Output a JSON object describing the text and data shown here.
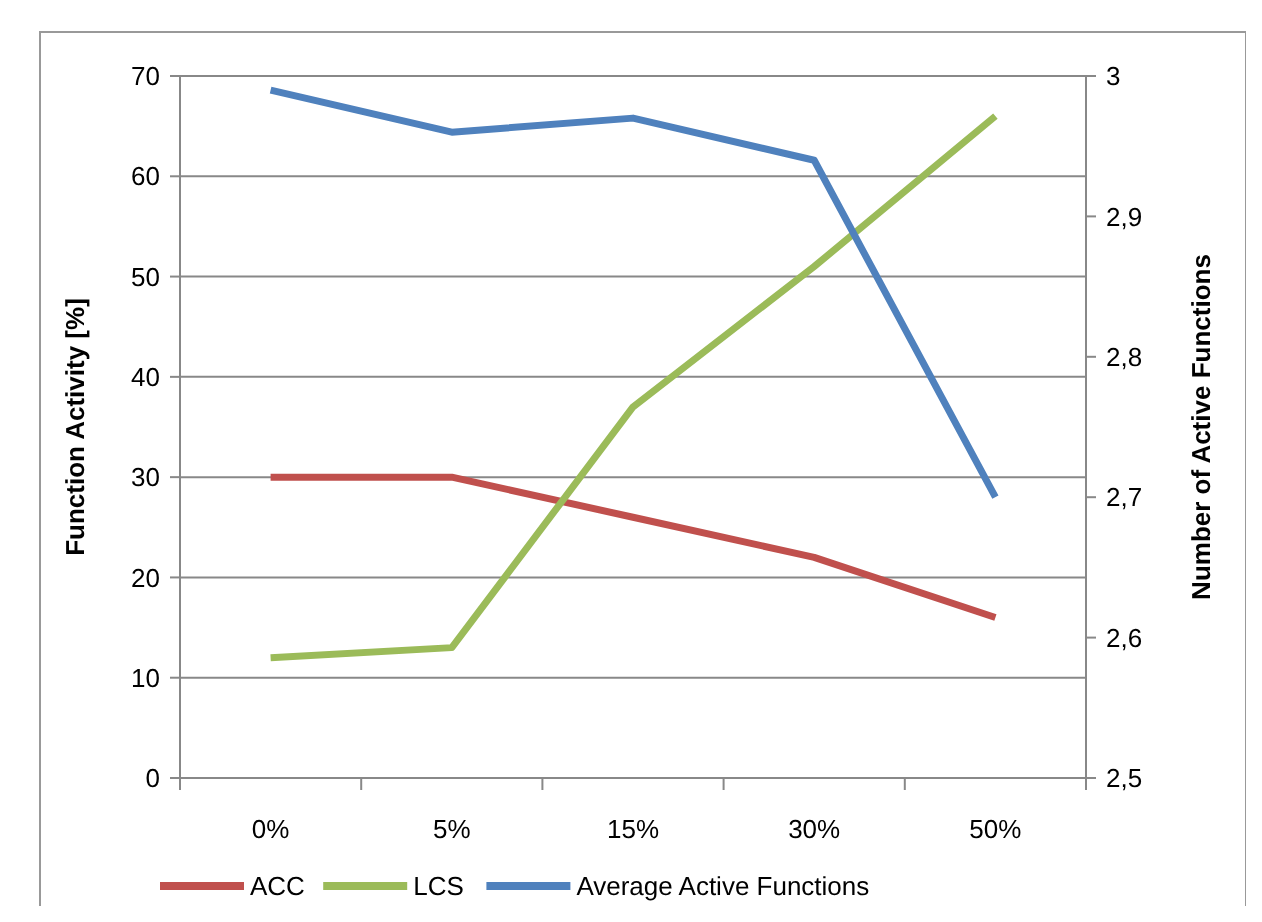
{
  "chart_data": {
    "type": "line",
    "categories": [
      "0%",
      "5%",
      "15%",
      "30%",
      "50%"
    ],
    "ylabel": "Function Activity [%]",
    "y2label": "Number of Active Functions",
    "series": [
      {
        "name": "ACC",
        "color": "#c0504d",
        "values": [
          30,
          30,
          26,
          22,
          16
        ]
      },
      {
        "name": "LCS",
        "color": "#9bbb59",
        "values": [
          12,
          13,
          37,
          51,
          66
        ]
      },
      {
        "name": "Average Active Functions",
        "color": "#4f81bd",
        "values": [
          2.99,
          2.96,
          2.97,
          2.94,
          2.7
        ],
        "axis": "y2"
      }
    ],
    "ylim": [
      0,
      70
    ],
    "yticks": [
      0,
      10,
      20,
      30,
      40,
      50,
      60,
      70
    ],
    "y2lim": [
      2.5,
      3
    ],
    "y2ticks": [
      {
        "value": 2.5,
        "label": "2,5"
      },
      {
        "value": 2.6,
        "label": "2,6"
      },
      {
        "value": 2.7,
        "label": "2,7"
      },
      {
        "value": 2.8,
        "label": "2,8"
      },
      {
        "value": 2.9,
        "label": "2,9"
      },
      {
        "value": 3,
        "label": "3"
      }
    ],
    "grid": "y",
    "legend": "bottom",
    "marker": "none",
    "line_style": "solid"
  }
}
